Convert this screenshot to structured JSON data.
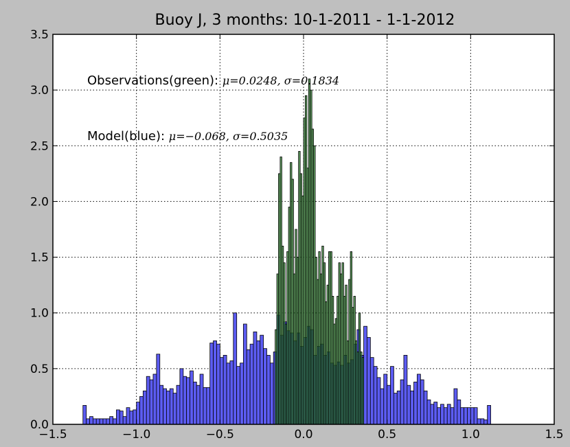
{
  "chart_data": {
    "type": "bar",
    "title": "Buoy J, 3 months: 10-1-2011 - 1-1-2012",
    "xlabel": "",
    "ylabel": "",
    "xlim": [
      -1.5,
      1.5
    ],
    "ylim": [
      0,
      3.5
    ],
    "xticks": [
      -1.5,
      -1.0,
      -0.5,
      0.0,
      0.5,
      1.0,
      1.5
    ],
    "xtick_labels": [
      "−1.5",
      "−1.0",
      "−0.5",
      "0.0",
      "0.5",
      "1.0",
      "1.5"
    ],
    "yticks": [
      0,
      0.5,
      1.0,
      1.5,
      2.0,
      2.5,
      3.0,
      3.5
    ],
    "ytick_labels": [
      "0.0",
      "0.5",
      "1.0",
      "1.5",
      "2.0",
      "2.5",
      "3.0",
      "3.5"
    ],
    "grid": true,
    "annotations": [
      {
        "text": "Observations(green): ",
        "math": "μ=0.0248, σ=0.1834"
      },
      {
        "text": "Model(blue): ",
        "math": "μ=−0.068, σ=0.5035"
      }
    ],
    "colors": {
      "observations": "#2e7d2e",
      "model": "#5c5cf2",
      "overlap": "#0f0f82",
      "background": "#bfbfbf",
      "plot_area": "#ffffff"
    },
    "series": [
      {
        "bin_width": 0.0202,
        "x": [
          -1.31,
          -1.29,
          -1.27,
          -1.25,
          -1.23,
          -1.21,
          -1.19,
          -1.17,
          -1.15,
          -1.13,
          -1.11,
          -1.09,
          -1.07,
          -1.05,
          -1.03,
          -1.01,
          -0.99,
          -0.97,
          -0.95,
          -0.93,
          -0.91,
          -0.89,
          -0.87,
          -0.85,
          -0.83,
          -0.81,
          -0.79,
          -0.77,
          -0.75,
          -0.73,
          -0.71,
          -0.69,
          -0.67,
          -0.65,
          -0.63,
          -0.61,
          -0.59,
          -0.57,
          -0.55,
          -0.53,
          -0.51,
          -0.49,
          -0.47,
          -0.45,
          -0.43,
          -0.41,
          -0.39,
          -0.37,
          -0.35,
          -0.33,
          -0.31,
          -0.29,
          -0.27,
          -0.25,
          -0.23,
          -0.21,
          -0.19,
          -0.17,
          -0.15,
          -0.13,
          -0.11,
          -0.09,
          -0.07,
          -0.05,
          -0.03,
          -0.01,
          0.01,
          0.03,
          0.05,
          0.07,
          0.09,
          0.11,
          0.13,
          0.15,
          0.17,
          0.19,
          0.21,
          0.23,
          0.25,
          0.27,
          0.29,
          0.31,
          0.33,
          0.35,
          0.37,
          0.39,
          0.41,
          0.43,
          0.45,
          0.47,
          0.49,
          0.51,
          0.53,
          0.55,
          0.57,
          0.59,
          0.61,
          0.63,
          0.65,
          0.67,
          0.69,
          0.71,
          0.73,
          0.75,
          0.77,
          0.79,
          0.81,
          0.83,
          0.85,
          0.87,
          0.89,
          0.91,
          0.93,
          0.95,
          0.97,
          0.99,
          1.01,
          1.03,
          1.05,
          1.07,
          1.09,
          1.11
        ],
        "values": [
          0.17,
          0.05,
          0.07,
          0.05,
          0.05,
          0.05,
          0.05,
          0.05,
          0.07,
          0.05,
          0.13,
          0.12,
          0.07,
          0.15,
          0.12,
          0.13,
          0.2,
          0.25,
          0.3,
          0.43,
          0.4,
          0.45,
          0.63,
          0.35,
          0.32,
          0.3,
          0.32,
          0.28,
          0.35,
          0.5,
          0.43,
          0.42,
          0.48,
          0.38,
          0.35,
          0.45,
          0.33,
          0.33,
          0.73,
          0.75,
          0.72,
          0.6,
          0.62,
          0.55,
          0.57,
          1.0,
          0.52,
          0.55,
          0.9,
          0.67,
          0.72,
          0.83,
          0.75,
          0.8,
          0.68,
          0.62,
          0.55,
          0.65,
          0.98,
          0.8,
          0.92,
          0.84,
          0.82,
          0.75,
          0.82,
          0.7,
          0.78,
          0.88,
          0.85,
          0.62,
          0.7,
          0.72,
          0.62,
          0.65,
          0.55,
          0.53,
          0.56,
          0.53,
          0.62,
          0.55,
          0.58,
          0.72,
          0.85,
          0.62,
          0.88,
          0.78,
          0.6,
          0.52,
          0.42,
          0.32,
          0.45,
          0.35,
          0.52,
          0.28,
          0.3,
          0.4,
          0.62,
          0.35,
          0.3,
          0.38,
          0.45,
          0.4,
          0.3,
          0.22,
          0.18,
          0.2,
          0.15,
          0.18,
          0.15,
          0.18,
          0.15,
          0.32,
          0.22,
          0.15,
          0.15,
          0.15,
          0.15,
          0.15,
          0.05,
          0.05,
          0.04,
          0.17
        ]
      },
      {
        "bin_width": 0.0102,
        "x": [
          -0.165,
          -0.155,
          -0.145,
          -0.135,
          -0.125,
          -0.115,
          -0.105,
          -0.095,
          -0.085,
          -0.075,
          -0.065,
          -0.055,
          -0.045,
          -0.035,
          -0.025,
          -0.015,
          -0.005,
          0.005,
          0.015,
          0.025,
          0.035,
          0.045,
          0.055,
          0.065,
          0.075,
          0.085,
          0.095,
          0.105,
          0.115,
          0.125,
          0.135,
          0.145,
          0.155,
          0.165,
          0.175,
          0.185,
          0.195,
          0.205,
          0.215,
          0.225,
          0.235,
          0.245,
          0.255,
          0.265,
          0.275,
          0.285,
          0.295,
          0.305,
          0.315,
          0.325,
          0.335,
          0.345,
          0.355
        ],
        "values": [
          0.85,
          1.35,
          2.25,
          2.4,
          1.6,
          1.45,
          0.9,
          1.55,
          1.95,
          2.35,
          2.2,
          1.35,
          1.75,
          1.5,
          2.45,
          2.25,
          2.05,
          2.75,
          2.95,
          2.3,
          3.1,
          3.0,
          2.65,
          2.5,
          1.5,
          1.3,
          1.55,
          1.35,
          1.6,
          1.45,
          1.1,
          1.25,
          1.55,
          1.55,
          1.15,
          0.9,
          0.95,
          1.15,
          1.45,
          1.35,
          1.45,
          1.15,
          1.25,
          0.75,
          1.3,
          1.55,
          1.05,
          1.15,
          0.75,
          0.65,
          1.0,
          0.65,
          0.6
        ]
      }
    ]
  }
}
